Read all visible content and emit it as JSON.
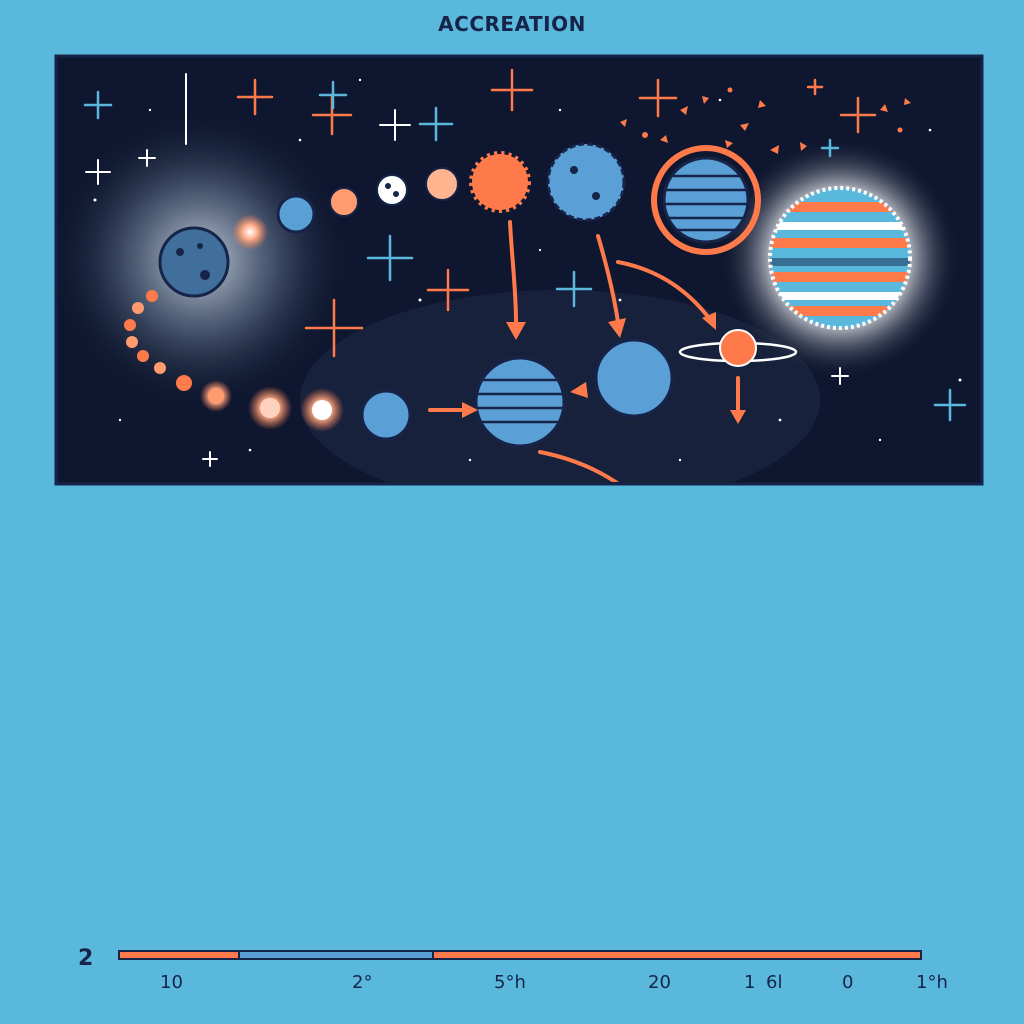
{
  "title": "ACCREATION",
  "colors": {
    "background": "#5ab8dd",
    "space": "#0f1730",
    "accent": "#ff7a4a",
    "planet": "#5a9fd6",
    "ink": "#16244a"
  },
  "scale": {
    "side_label": "2",
    "ticks": [
      "10",
      "2°",
      "5°h",
      "20",
      "1",
      "6l",
      "0",
      "1°h"
    ]
  }
}
